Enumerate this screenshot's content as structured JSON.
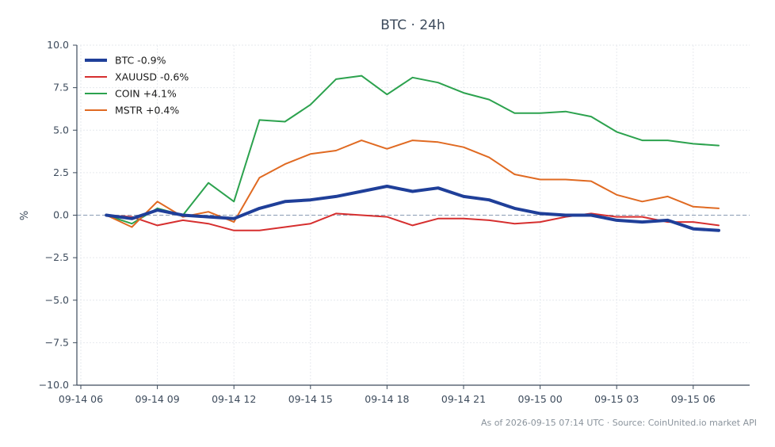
{
  "chart_data": {
    "type": "line",
    "title": "BTC · 24h",
    "xlabel": "",
    "ylabel": "%",
    "footer": "As of 2026-09-15 07:14 UTC · Source: CoinUnited.io market API",
    "x_ticks": [
      "09-14 06",
      "09-14 09",
      "09-14 12",
      "09-14 15",
      "09-14 18",
      "09-14 21",
      "09-15 00",
      "09-15 03",
      "09-15 06"
    ],
    "y_ticks": [
      "10.0",
      "7.5",
      "5.0",
      "2.5",
      "0.0",
      "−2.5",
      "−5.0",
      "−7.5",
      "−10.0"
    ],
    "ylim": [
      -10,
      10
    ],
    "grid": true,
    "zero_line": true,
    "legend_position": "top-left",
    "x": [
      "09-14 07",
      "09-14 08",
      "09-14 09",
      "09-14 10",
      "09-14 11",
      "09-14 12",
      "09-14 13",
      "09-14 14",
      "09-14 15",
      "09-14 16",
      "09-14 17",
      "09-14 18",
      "09-14 19",
      "09-14 20",
      "09-14 21",
      "09-14 22",
      "09-14 23",
      "09-15 00",
      "09-15 01",
      "09-15 02",
      "09-15 03",
      "09-15 04",
      "09-15 05",
      "09-15 06",
      "09-15 07"
    ],
    "series": [
      {
        "name": "BTC -0.9%",
        "color": "#1f3f99",
        "width": 4,
        "values": [
          0.0,
          -0.2,
          0.3,
          0.0,
          -0.1,
          -0.2,
          0.4,
          0.8,
          0.9,
          1.1,
          1.4,
          1.7,
          1.4,
          1.6,
          1.1,
          0.9,
          0.4,
          0.1,
          0.0,
          0.0,
          -0.3,
          -0.4,
          -0.3,
          -0.8,
          -0.9
        ]
      },
      {
        "name": "XAUUSD -0.6%",
        "color": "#d62f2f",
        "width": 2,
        "values": [
          0.0,
          -0.1,
          -0.6,
          -0.3,
          -0.5,
          -0.9,
          -0.9,
          -0.7,
          -0.5,
          0.1,
          0.0,
          -0.1,
          -0.6,
          -0.2,
          -0.2,
          -0.3,
          -0.5,
          -0.4,
          -0.1,
          0.1,
          -0.1,
          -0.1,
          -0.4,
          -0.4,
          -0.6
        ]
      },
      {
        "name": "COIN +4.1%",
        "color": "#2ca24e",
        "width": 2,
        "values": [
          0.0,
          -0.5,
          0.4,
          0.0,
          1.9,
          0.8,
          5.6,
          5.5,
          6.5,
          8.0,
          8.2,
          7.1,
          8.1,
          7.8,
          7.2,
          6.8,
          6.0,
          6.0,
          6.1,
          5.8,
          4.9,
          4.4,
          4.4,
          4.2,
          4.1
        ]
      },
      {
        "name": "MSTR +0.4%",
        "color": "#e06a22",
        "width": 2,
        "values": [
          0.0,
          -0.7,
          0.8,
          -0.1,
          0.2,
          -0.4,
          2.2,
          3.0,
          3.6,
          3.8,
          4.4,
          3.9,
          4.4,
          4.3,
          4.0,
          3.4,
          2.4,
          2.1,
          2.1,
          2.0,
          1.2,
          0.8,
          1.1,
          0.5,
          0.4
        ]
      }
    ]
  }
}
